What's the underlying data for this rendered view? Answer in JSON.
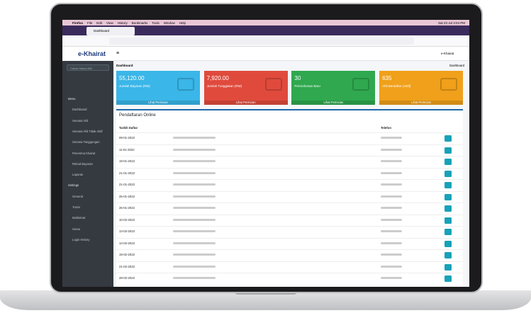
{
  "menubar": {
    "app": "Firefox",
    "items": [
      "File",
      "Edit",
      "View",
      "History",
      "Bookmarks",
      "Tools",
      "Window",
      "Help"
    ],
    "clock": "Sat 23 Jul 3:04 PM"
  },
  "browser": {
    "tab": "Dashboard"
  },
  "app": {
    "logo": "e-Khairat",
    "search_placeholder": "Carian Nama Ahli",
    "user": "e-Khairat",
    "page_title": "Dashboard",
    "breadcrumb": "Dashboard",
    "sidebar": [
      {
        "heading": "Menu",
        "items": [
          "Dashboard",
          "Senarai Ahli",
          "Senarai Ahli Tidak Aktif",
          "Senarai Tanggungan",
          "Penerima Khairat",
          "Rekod Bayaran",
          "Laporan"
        ]
      },
      {
        "heading": "Settings",
        "items": [
          "General",
          "Yuran",
          "Maklumat",
          "Surau",
          "Login History"
        ]
      }
    ],
    "cards": [
      {
        "value": "55,120.00",
        "label": "Jumlah Bayaran (RM)",
        "link": "Lihat Perincian"
      },
      {
        "value": "7,920.00",
        "label": "Jumlah Tunggakan (RM)",
        "link": "Lihat Perincian"
      },
      {
        "value": "30",
        "label": "Permohonan Baru",
        "link": "Lihat Perincian"
      },
      {
        "value": "635",
        "label": "Ahli Berdaftar (Aktif)",
        "link": "Lihat Perincian"
      }
    ],
    "table": {
      "title": "Pendaftaran Online",
      "headers": [
        "Tarikh Daftar",
        "Telefon"
      ],
      "rows": [
        "09-01-2022",
        "11-01-2022",
        "19-01-2022",
        "21-01-2022",
        "21-01-2022",
        "25-01-2022",
        "26-01-2022",
        "10-02-2022",
        "13-02-2022",
        "14-02-2022",
        "19-02-2022",
        "21-02-2022",
        "28-02-2022"
      ]
    }
  }
}
